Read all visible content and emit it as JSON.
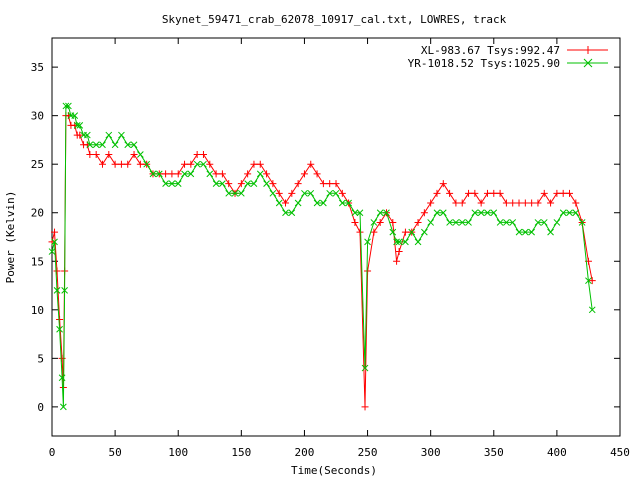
{
  "chart_data": {
    "type": "scatter",
    "title": "Skynet_59471_crab_62078_10917_cal.txt, LOWRES, track",
    "xlabel": "Time(Seconds)",
    "ylabel": "Power (Kelvin)",
    "xlim": [
      0,
      450
    ],
    "ylim": [
      -3,
      38
    ],
    "xticks": [
      0,
      50,
      100,
      150,
      200,
      250,
      300,
      350,
      400,
      450
    ],
    "yticks": [
      0,
      5,
      10,
      15,
      20,
      25,
      30,
      35
    ],
    "grid": false,
    "legend_position": "top-right",
    "series": [
      {
        "name": "XL-983.67 Tsys:992.47",
        "color": "#ff0000",
        "marker": "plus",
        "points": [
          [
            0,
            17
          ],
          [
            2,
            18
          ],
          [
            4,
            14
          ],
          [
            6,
            9
          ],
          [
            8,
            5
          ],
          [
            9,
            2
          ],
          [
            10,
            14
          ],
          [
            11,
            30
          ],
          [
            13,
            30
          ],
          [
            15,
            29
          ],
          [
            18,
            29
          ],
          [
            20,
            28
          ],
          [
            22,
            28
          ],
          [
            25,
            27
          ],
          [
            28,
            27
          ],
          [
            30,
            26
          ],
          [
            35,
            26
          ],
          [
            40,
            25
          ],
          [
            45,
            26
          ],
          [
            50,
            25
          ],
          [
            55,
            25
          ],
          [
            60,
            25
          ],
          [
            65,
            26
          ],
          [
            70,
            25
          ],
          [
            75,
            25
          ],
          [
            80,
            24
          ],
          [
            85,
            24
          ],
          [
            90,
            24
          ],
          [
            95,
            24
          ],
          [
            100,
            24
          ],
          [
            105,
            25
          ],
          [
            110,
            25
          ],
          [
            115,
            26
          ],
          [
            120,
            26
          ],
          [
            125,
            25
          ],
          [
            130,
            24
          ],
          [
            135,
            24
          ],
          [
            140,
            23
          ],
          [
            145,
            22
          ],
          [
            150,
            23
          ],
          [
            155,
            24
          ],
          [
            160,
            25
          ],
          [
            165,
            25
          ],
          [
            170,
            24
          ],
          [
            175,
            23
          ],
          [
            180,
            22
          ],
          [
            185,
            21
          ],
          [
            190,
            22
          ],
          [
            195,
            23
          ],
          [
            200,
            24
          ],
          [
            205,
            25
          ],
          [
            210,
            24
          ],
          [
            215,
            23
          ],
          [
            220,
            23
          ],
          [
            225,
            23
          ],
          [
            230,
            22
          ],
          [
            235,
            21
          ],
          [
            240,
            19
          ],
          [
            244,
            18
          ],
          [
            248,
            0
          ],
          [
            250,
            14
          ],
          [
            255,
            18
          ],
          [
            260,
            19
          ],
          [
            265,
            20
          ],
          [
            270,
            19
          ],
          [
            273,
            15
          ],
          [
            275,
            16
          ],
          [
            280,
            18
          ],
          [
            285,
            18
          ],
          [
            290,
            19
          ],
          [
            295,
            20
          ],
          [
            300,
            21
          ],
          [
            305,
            22
          ],
          [
            310,
            23
          ],
          [
            315,
            22
          ],
          [
            320,
            21
          ],
          [
            325,
            21
          ],
          [
            330,
            22
          ],
          [
            335,
            22
          ],
          [
            340,
            21
          ],
          [
            345,
            22
          ],
          [
            350,
            22
          ],
          [
            355,
            22
          ],
          [
            360,
            21
          ],
          [
            365,
            21
          ],
          [
            370,
            21
          ],
          [
            375,
            21
          ],
          [
            380,
            21
          ],
          [
            385,
            21
          ],
          [
            390,
            22
          ],
          [
            395,
            21
          ],
          [
            400,
            22
          ],
          [
            405,
            22
          ],
          [
            410,
            22
          ],
          [
            415,
            21
          ],
          [
            420,
            19
          ],
          [
            425,
            15
          ],
          [
            428,
            13
          ]
        ]
      },
      {
        "name": "YR-1018.52 Tsys:1025.90",
        "color": "#00c000",
        "marker": "cross",
        "points": [
          [
            0,
            16
          ],
          [
            2,
            17
          ],
          [
            4,
            12
          ],
          [
            6,
            8
          ],
          [
            8,
            3
          ],
          [
            9,
            0
          ],
          [
            10,
            12
          ],
          [
            11,
            31
          ],
          [
            13,
            31
          ],
          [
            15,
            30
          ],
          [
            18,
            30
          ],
          [
            20,
            29
          ],
          [
            22,
            29
          ],
          [
            25,
            28
          ],
          [
            28,
            28
          ],
          [
            30,
            27
          ],
          [
            35,
            27
          ],
          [
            40,
            27
          ],
          [
            45,
            28
          ],
          [
            50,
            27
          ],
          [
            55,
            28
          ],
          [
            60,
            27
          ],
          [
            65,
            27
          ],
          [
            70,
            26
          ],
          [
            75,
            25
          ],
          [
            80,
            24
          ],
          [
            85,
            24
          ],
          [
            90,
            23
          ],
          [
            95,
            23
          ],
          [
            100,
            23
          ],
          [
            105,
            24
          ],
          [
            110,
            24
          ],
          [
            115,
            25
          ],
          [
            120,
            25
          ],
          [
            125,
            24
          ],
          [
            130,
            23
          ],
          [
            135,
            23
          ],
          [
            140,
            22
          ],
          [
            145,
            22
          ],
          [
            150,
            22
          ],
          [
            155,
            23
          ],
          [
            160,
            23
          ],
          [
            165,
            24
          ],
          [
            170,
            23
          ],
          [
            175,
            22
          ],
          [
            180,
            21
          ],
          [
            185,
            20
          ],
          [
            190,
            20
          ],
          [
            195,
            21
          ],
          [
            200,
            22
          ],
          [
            205,
            22
          ],
          [
            210,
            21
          ],
          [
            215,
            21
          ],
          [
            220,
            22
          ],
          [
            225,
            22
          ],
          [
            230,
            21
          ],
          [
            235,
            21
          ],
          [
            240,
            20
          ],
          [
            244,
            20
          ],
          [
            248,
            4
          ],
          [
            250,
            17
          ],
          [
            255,
            19
          ],
          [
            260,
            20
          ],
          [
            265,
            20
          ],
          [
            270,
            18
          ],
          [
            273,
            17
          ],
          [
            275,
            17
          ],
          [
            280,
            17
          ],
          [
            285,
            18
          ],
          [
            290,
            17
          ],
          [
            295,
            18
          ],
          [
            300,
            19
          ],
          [
            305,
            20
          ],
          [
            310,
            20
          ],
          [
            315,
            19
          ],
          [
            320,
            19
          ],
          [
            325,
            19
          ],
          [
            330,
            19
          ],
          [
            335,
            20
          ],
          [
            340,
            20
          ],
          [
            345,
            20
          ],
          [
            350,
            20
          ],
          [
            355,
            19
          ],
          [
            360,
            19
          ],
          [
            365,
            19
          ],
          [
            370,
            18
          ],
          [
            375,
            18
          ],
          [
            380,
            18
          ],
          [
            385,
            19
          ],
          [
            390,
            19
          ],
          [
            395,
            18
          ],
          [
            400,
            19
          ],
          [
            405,
            20
          ],
          [
            410,
            20
          ],
          [
            415,
            20
          ],
          [
            420,
            19
          ],
          [
            425,
            13
          ],
          [
            428,
            10
          ]
        ]
      }
    ]
  }
}
